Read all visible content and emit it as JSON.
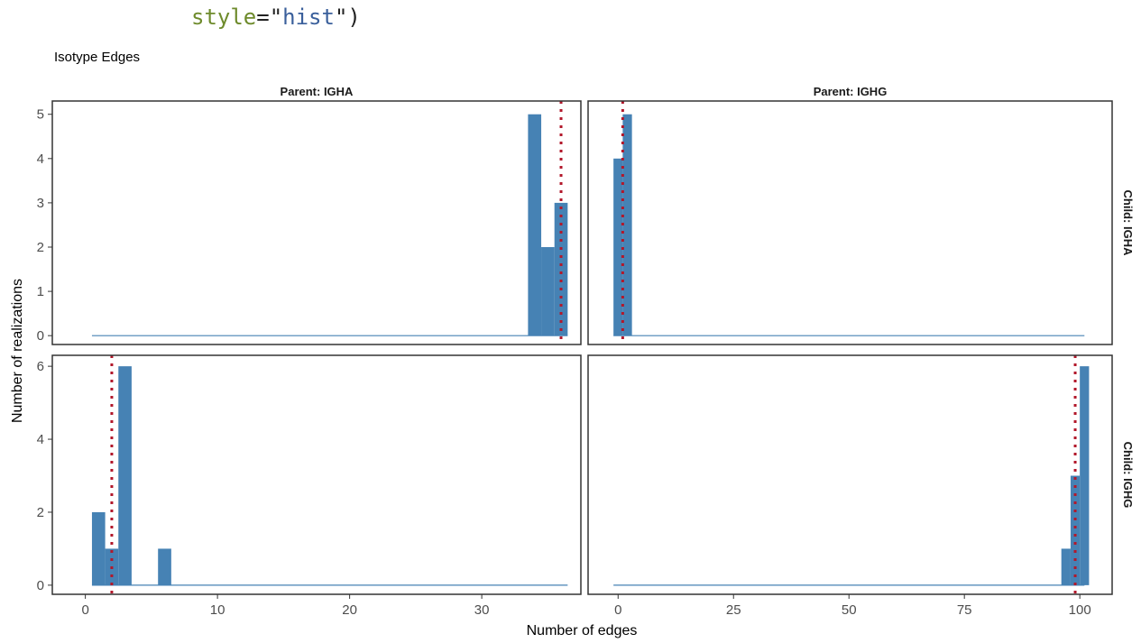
{
  "code": {
    "fragment": {
      "name": "style",
      "eq": "=\"",
      "value": "hist",
      "close": "\")"
    },
    "colors": {
      "name": "#6e8b2c",
      "string": "#3a5f9b",
      "punct": "#222222"
    }
  },
  "chart_data": {
    "type": "bar",
    "style": "hist",
    "title": "Isotype Edges",
    "xlabel": "Number of edges",
    "ylabel": "Number of realizations",
    "grid": false,
    "colors": {
      "bars": "#4682b4",
      "reference_line": "#b2182b",
      "frame": "#333333",
      "strip_bg": "#ffffff"
    },
    "columns": [
      {
        "label": "Parent: IGHA",
        "xlim": [
          -2.5,
          37.5
        ],
        "xticks": [
          0,
          10,
          20,
          30
        ]
      },
      {
        "label": "Parent: IGHG",
        "xlim": [
          -6.5,
          107
        ],
        "xticks": [
          0,
          25,
          50,
          75,
          100
        ]
      }
    ],
    "rows": [
      {
        "label": "Child: IGHA",
        "ylim": [
          -0.2,
          5.3
        ],
        "yticks": [
          0,
          1,
          2,
          3,
          4,
          5
        ]
      },
      {
        "label": "Child: IGHG",
        "ylim": [
          -0.25,
          6.3
        ],
        "yticks": [
          0,
          2,
          4,
          6
        ]
      }
    ],
    "panels": [
      {
        "parent": "IGHA",
        "child": "IGHA",
        "reference_x": 36,
        "baseline_range": [
          0.5,
          36.5
        ],
        "bars": [
          {
            "x": 34,
            "count": 5
          },
          {
            "x": 35,
            "count": 2
          },
          {
            "x": 36,
            "count": 3
          }
        ]
      },
      {
        "parent": "IGHG",
        "child": "IGHA",
        "reference_x": 1,
        "baseline_range": [
          -1,
          101
        ],
        "bars": [
          {
            "x": 0,
            "count": 4
          },
          {
            "x": 2,
            "count": 5
          }
        ]
      },
      {
        "parent": "IGHA",
        "child": "IGHG",
        "reference_x": 2,
        "baseline_range": [
          0.5,
          36.5
        ],
        "bars": [
          {
            "x": 1,
            "count": 2
          },
          {
            "x": 2,
            "count": 1
          },
          {
            "x": 3,
            "count": 6
          },
          {
            "x": 6,
            "count": 1
          }
        ]
      },
      {
        "parent": "IGHG",
        "child": "IGHG",
        "reference_x": 99,
        "baseline_range": [
          -1,
          101
        ],
        "bars": [
          {
            "x": 97,
            "count": 1
          },
          {
            "x": 99,
            "count": 3
          },
          {
            "x": 101,
            "count": 6
          }
        ]
      }
    ]
  }
}
